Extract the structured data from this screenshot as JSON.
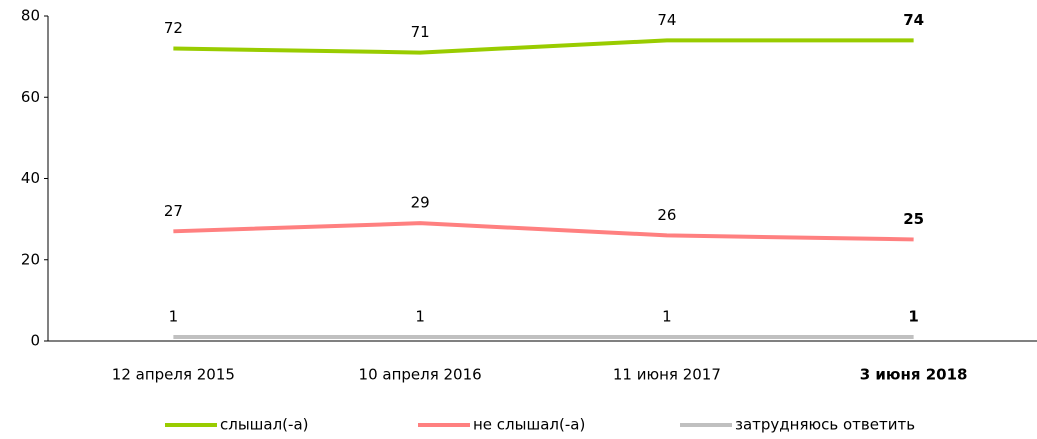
{
  "chart_data": {
    "type": "line",
    "categories": [
      "12 апреля 2015",
      "10 апреля 2016",
      "11 июня 2017",
      "3 июня 2018"
    ],
    "series": [
      {
        "name": "слышал(-а)",
        "color": "#99cc00",
        "values": [
          72,
          71,
          74,
          74
        ]
      },
      {
        "name": "не слышал(-а)",
        "color": "#ff8080",
        "values": [
          27,
          29,
          26,
          25
        ]
      },
      {
        "name": "затрудняюсь ответить",
        "color": "#c0c0c0",
        "values": [
          1,
          1,
          1,
          1
        ]
      }
    ],
    "ylim": [
      0,
      80
    ],
    "yticks": [
      0,
      20,
      40,
      60,
      80
    ],
    "grid": false,
    "legend": "bottom"
  }
}
